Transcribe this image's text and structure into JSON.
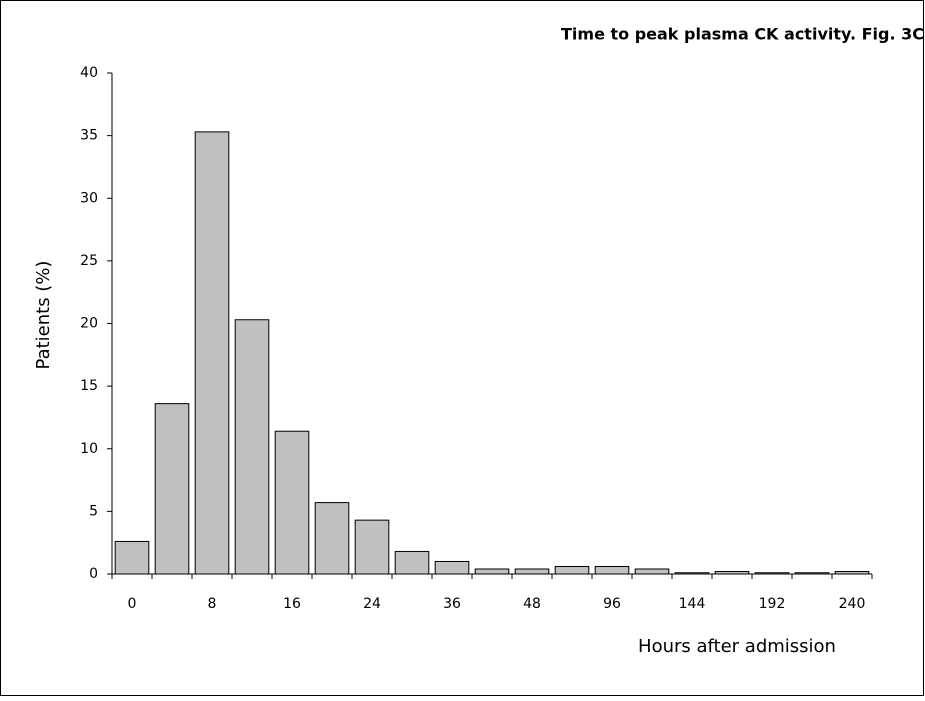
{
  "chart_data": {
    "type": "bar",
    "title": "Time to peak plasma CK activity. Fig. 3C",
    "x_label": "Hours after admission",
    "y_label": "Patients (%)",
    "categories": [
      "0",
      null,
      "8",
      null,
      "16",
      null,
      "24",
      null,
      "36",
      null,
      "48",
      null,
      "96",
      null,
      "144",
      null,
      "192",
      null,
      "240"
    ],
    "values": [
      2.6,
      13.6,
      35.3,
      20.3,
      11.4,
      5.7,
      4.3,
      1.8,
      1.0,
      0.4,
      0.4,
      0.6,
      0.6,
      0.4,
      0.1,
      0.2,
      0.1,
      0.1,
      0.2
    ],
    "color": "#c0c0c0",
    "ylim": [
      0,
      40
    ],
    "yticks": [
      0,
      5,
      10,
      15,
      20,
      25,
      30,
      35,
      40
    ],
    "grid": false
  }
}
